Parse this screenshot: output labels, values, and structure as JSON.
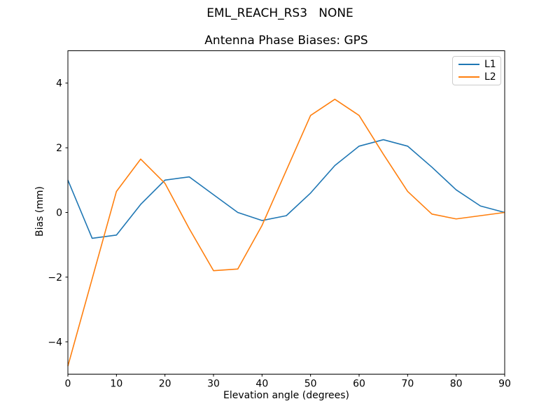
{
  "chart_data": {
    "type": "line",
    "suptitle": "EML_REACH_RS3   NONE",
    "title": "Antenna Phase Biases: GPS",
    "xlabel": "Elevation angle (degrees)",
    "ylabel": "Bias (mm)",
    "x": [
      0,
      5,
      10,
      15,
      20,
      25,
      30,
      35,
      40,
      45,
      50,
      55,
      60,
      65,
      70,
      75,
      80,
      85,
      90
    ],
    "series": [
      {
        "name": "L1",
        "color": "#1f77b4",
        "values": [
          1.0,
          -0.8,
          -0.7,
          0.25,
          1.0,
          1.1,
          0.55,
          0.0,
          -0.25,
          -0.1,
          0.6,
          1.45,
          2.05,
          2.25,
          2.05,
          1.4,
          0.7,
          0.2,
          0.0
        ]
      },
      {
        "name": "L2",
        "color": "#ff7f0e",
        "values": [
          -4.75,
          -2.05,
          0.65,
          1.65,
          0.9,
          -0.5,
          -1.8,
          -1.75,
          -0.4,
          1.3,
          3.0,
          3.5,
          3.0,
          1.8,
          0.65,
          -0.05,
          -0.2,
          -0.1,
          0.0
        ]
      }
    ],
    "xlim": [
      0,
      90
    ],
    "ylim": [
      -5,
      5
    ],
    "xticks": [
      0,
      10,
      20,
      30,
      40,
      50,
      60,
      70,
      80,
      90
    ],
    "yticks": [
      -4,
      -2,
      0,
      2,
      4
    ],
    "grid": false,
    "legend_position": "upper right",
    "axis_color": "#000000",
    "background": "#ffffff"
  }
}
